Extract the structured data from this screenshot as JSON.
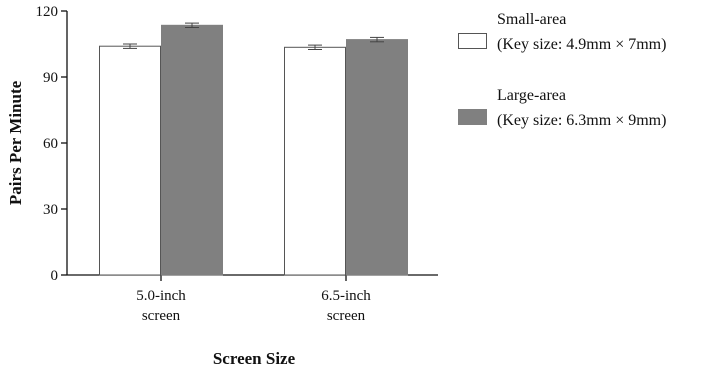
{
  "chart_data": {
    "type": "bar",
    "title": "",
    "xlabel": "Screen Size",
    "ylabel": "Pairs Per Minute",
    "ylim": [
      0,
      120
    ],
    "yticks": [
      0,
      30,
      60,
      90,
      120
    ],
    "categories": [
      [
        "5.0-inch",
        "screen"
      ],
      [
        "6.5-inch",
        "screen"
      ]
    ],
    "series": [
      {
        "name": [
          "Small-area",
          "(Key size: 4.9mm × 7mm)"
        ],
        "values": [
          104,
          103.5
        ],
        "errors": [
          1,
          1
        ],
        "fill": "#ffffff",
        "stroke": "#555555"
      },
      {
        "name": [
          "Large-area",
          "(Key size: 6.3mm × 9mm)"
        ],
        "values": [
          113.5,
          107
        ],
        "errors": [
          1,
          1
        ],
        "fill": "#808080",
        "stroke": "#808080"
      }
    ],
    "legend_position": "right",
    "grid": false
  }
}
